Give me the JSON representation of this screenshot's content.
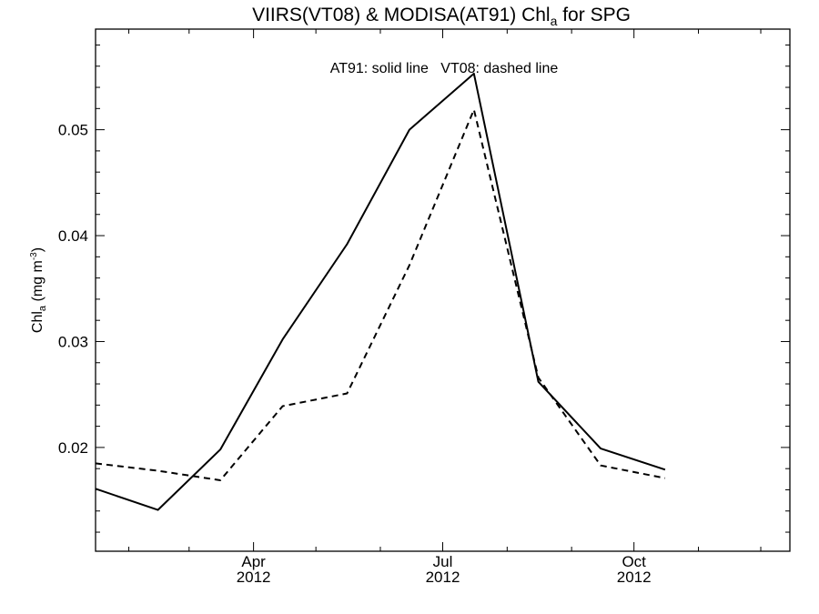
{
  "chart_data": {
    "type": "line",
    "title": {
      "prefix": "VIIRS(VT08) & MODISA(AT91)  Chl",
      "subscript": "a",
      "suffix": " for SPG"
    },
    "annotation": "AT91: solid line   VT08: dashed line",
    "ylabel": {
      "prefix": "Chl",
      "subscript": "a",
      "middle": " (mg m",
      "superscript": "-3",
      "suffix": ")"
    },
    "ylim": [
      0.0102,
      0.0595
    ],
    "yticks": [
      {
        "value": 0.02,
        "label": "0.02"
      },
      {
        "value": 0.03,
        "label": "0.03"
      },
      {
        "value": 0.04,
        "label": "0.04"
      },
      {
        "value": 0.05,
        "label": "0.05"
      }
    ],
    "xlim": [
      "2012-01-16",
      "2012-12-15"
    ],
    "xticks": [
      {
        "date": "2012-04-01",
        "label": "Apr",
        "year": "2012"
      },
      {
        "date": "2012-07-01",
        "label": "Jul",
        "year": "2012"
      },
      {
        "date": "2012-10-01",
        "label": "Oct",
        "year": "2012"
      }
    ],
    "grid": false,
    "series": [
      {
        "name": "AT91",
        "style": "solid",
        "color": "#000000",
        "points": [
          {
            "x": "2012-01-16",
            "y": 0.0161
          },
          {
            "x": "2012-02-15",
            "y": 0.0141
          },
          {
            "x": "2012-03-16",
            "y": 0.0198
          },
          {
            "x": "2012-04-15",
            "y": 0.0302
          },
          {
            "x": "2012-05-16",
            "y": 0.0392
          },
          {
            "x": "2012-06-15",
            "y": 0.05
          },
          {
            "x": "2012-07-16",
            "y": 0.0553
          },
          {
            "x": "2012-08-16",
            "y": 0.0262
          },
          {
            "x": "2012-09-15",
            "y": 0.0199
          },
          {
            "x": "2012-10-16",
            "y": 0.0179
          }
        ]
      },
      {
        "name": "VT08",
        "style": "dashed",
        "color": "#000000",
        "points": [
          {
            "x": "2012-01-16",
            "y": 0.0185
          },
          {
            "x": "2012-02-15",
            "y": 0.0178
          },
          {
            "x": "2012-03-16",
            "y": 0.0169
          },
          {
            "x": "2012-04-15",
            "y": 0.0239
          },
          {
            "x": "2012-05-16",
            "y": 0.0251
          },
          {
            "x": "2012-06-15",
            "y": 0.0372
          },
          {
            "x": "2012-07-16",
            "y": 0.0519
          },
          {
            "x": "2012-08-16",
            "y": 0.0266
          },
          {
            "x": "2012-09-15",
            "y": 0.0183
          },
          {
            "x": "2012-10-16",
            "y": 0.0171
          }
        ]
      }
    ]
  }
}
